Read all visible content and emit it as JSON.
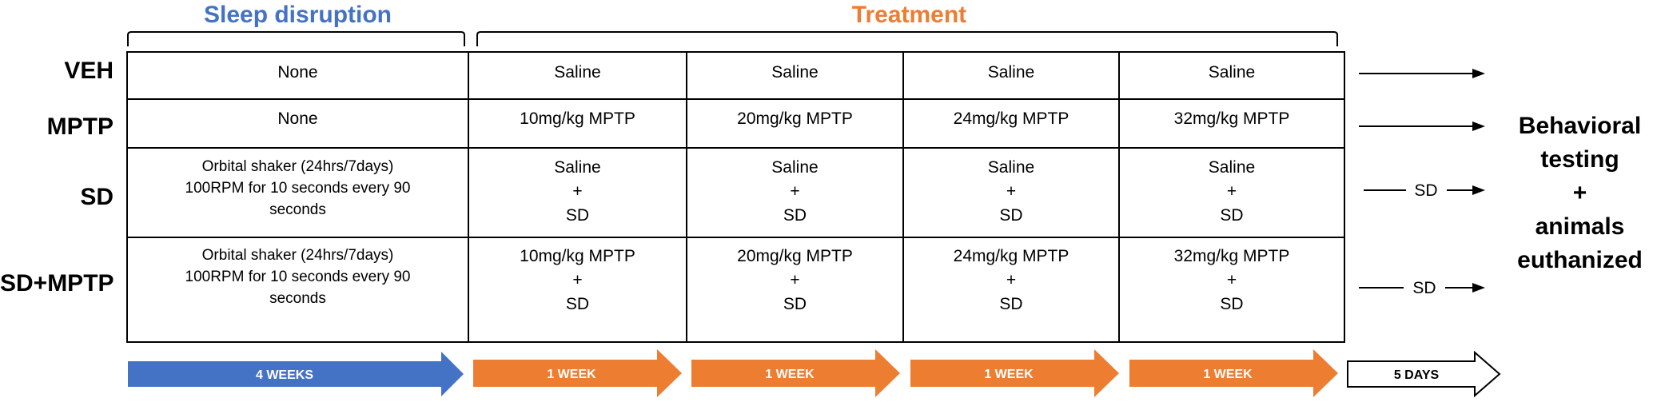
{
  "headers": {
    "sleep_disruption": "Sleep disruption",
    "treatment": "Treatment"
  },
  "rows": [
    {
      "label": "VEH",
      "sleep": [
        "None"
      ],
      "treatments": [
        [
          "Saline"
        ],
        [
          "Saline"
        ],
        [
          "Saline"
        ],
        [
          "Saline"
        ]
      ],
      "arrow_label": ""
    },
    {
      "label": "MPTP",
      "sleep": [
        "None"
      ],
      "treatments": [
        [
          "10mg/kg MPTP"
        ],
        [
          "20mg/kg MPTP"
        ],
        [
          "24mg/kg MPTP"
        ],
        [
          "32mg/kg MPTP"
        ]
      ],
      "arrow_label": ""
    },
    {
      "label": "SD",
      "sleep": [
        "Orbital shaker (24hrs/7days)",
        "100RPM for 10 seconds every 90",
        "seconds"
      ],
      "treatments": [
        [
          "Saline",
          "+",
          "SD"
        ],
        [
          "Saline",
          "+",
          "SD"
        ],
        [
          "Saline",
          "+",
          "SD"
        ],
        [
          "Saline",
          "+",
          "SD"
        ]
      ],
      "arrow_label": "SD"
    },
    {
      "label": "SD+MPTP",
      "sleep": [
        "Orbital shaker (24hrs/7days)",
        "100RPM for 10 seconds every 90",
        "seconds"
      ],
      "treatments": [
        [
          "10mg/kg MPTP",
          "+",
          "SD"
        ],
        [
          "20mg/kg MPTP",
          "+",
          "SD"
        ],
        [
          "24mg/kg MPTP",
          "+",
          "SD"
        ],
        [
          "32mg/kg MPTP",
          "+",
          "SD"
        ]
      ],
      "arrow_label": "SD"
    }
  ],
  "result_lines": [
    "Behavioral",
    "testing",
    "+",
    "animals",
    "euthanized"
  ],
  "timeline": [
    {
      "label": "4 WEEKS",
      "color": "#4472C4"
    },
    {
      "label": "1 WEEK",
      "color": "#ED7D31"
    },
    {
      "label": "1 WEEK",
      "color": "#ED7D31"
    },
    {
      "label": "1 WEEK",
      "color": "#ED7D31"
    },
    {
      "label": "1 WEEK",
      "color": "#ED7D31"
    },
    {
      "label": "5 DAYS",
      "color": "#ffffff"
    }
  ],
  "colors": {
    "sleep_header": "#4472C4",
    "treatment_header": "#ED7D31"
  }
}
